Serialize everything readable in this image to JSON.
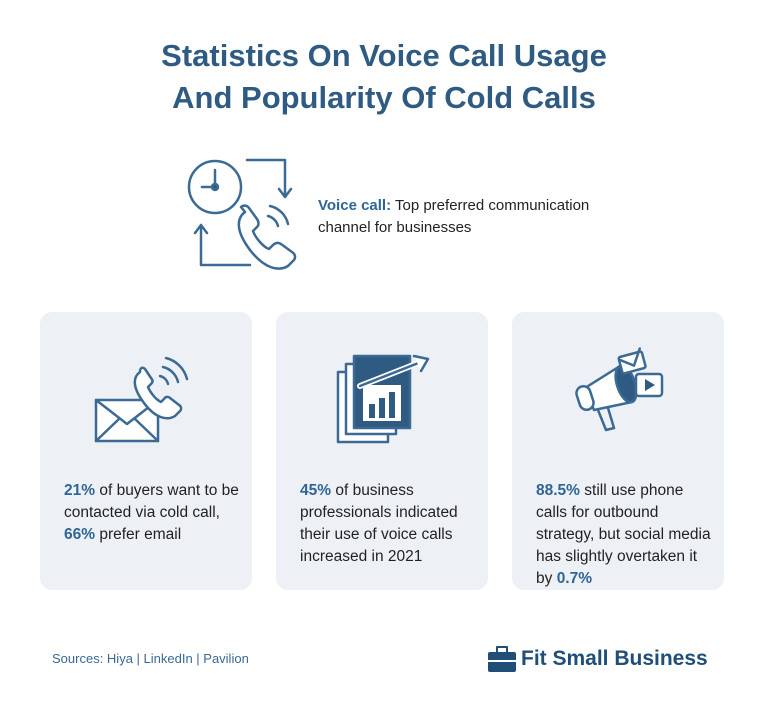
{
  "header": {
    "title_lines": [
      "Statistics On Voice Call Usage",
      "And Popularity Of Cold Calls"
    ]
  },
  "feature": {
    "segments": [
      {
        "text": "Voice call:",
        "strong": true
      },
      {
        "text": " Top preferred communication channel for businesses",
        "strong": false
      }
    ]
  },
  "cards": [
    {
      "segments": [
        {
          "text": "21%",
          "strong": true
        },
        {
          "text": " of buyers want to be contacted via cold call, ",
          "strong": false
        },
        {
          "text": "66%",
          "strong": true
        },
        {
          "text": " prefer email",
          "strong": false
        }
      ]
    },
    {
      "segments": [
        {
          "text": "45%",
          "strong": true
        },
        {
          "text": " of business professionals indicated their use of voice calls increased in 2021",
          "strong": false
        }
      ]
    },
    {
      "segments": [
        {
          "text": "88.5%",
          "strong": true
        },
        {
          "text": " still use phone calls for outbound strategy, but social media has slightly overtaken it by ",
          "strong": false
        },
        {
          "text": "0.7%",
          "strong": true
        }
      ]
    }
  ],
  "footer": {
    "sources": "Sources: Hiya | LinkedIn | Pavilion",
    "brand": "Fit Small Business"
  }
}
